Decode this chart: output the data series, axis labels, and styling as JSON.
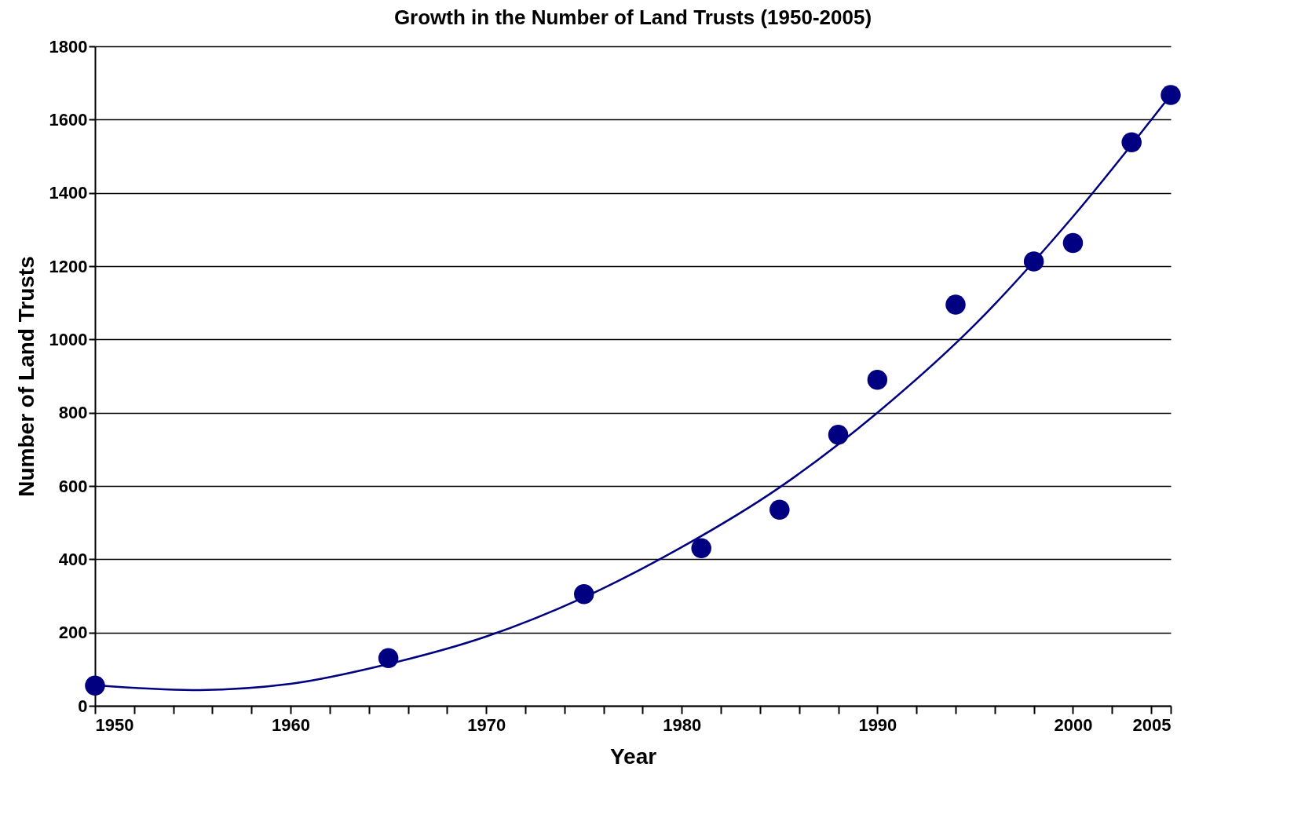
{
  "chart_data": {
    "type": "scatter",
    "title": "Growth in the Number of Land Trusts (1950-2005)",
    "xlabel": "Year",
    "ylabel": "Number of Land Trusts",
    "xlim": [
      1950,
      2005
    ],
    "ylim": [
      0,
      1800
    ],
    "xticks": [
      1950,
      {
        "value": 1952,
        "label": null
      },
      {
        "value": 1954,
        "label": null
      },
      {
        "value": 1956,
        "label": null
      },
      {
        "value": 1958,
        "label": null
      },
      1960,
      {
        "value": 1962,
        "label": null
      },
      {
        "value": 1964,
        "label": null
      },
      {
        "value": 1966,
        "label": null
      },
      {
        "value": 1968,
        "label": null
      },
      1970,
      {
        "value": 1972,
        "label": null
      },
      {
        "value": 1974,
        "label": null
      },
      {
        "value": 1976,
        "label": null
      },
      {
        "value": 1978,
        "label": null
      },
      1980,
      {
        "value": 1982,
        "label": null
      },
      {
        "value": 1984,
        "label": null
      },
      {
        "value": 1986,
        "label": null
      },
      {
        "value": 1988,
        "label": null
      },
      1990,
      {
        "value": 1992,
        "label": null
      },
      {
        "value": 1994,
        "label": null
      },
      {
        "value": 1996,
        "label": null
      },
      {
        "value": 1998,
        "label": null
      },
      2000,
      {
        "value": 2002,
        "label": null
      },
      {
        "value": 2004,
        "label": null
      },
      2005
    ],
    "yticks": [
      0,
      200,
      400,
      600,
      800,
      1000,
      1200,
      1400,
      1600,
      1800
    ],
    "grid": "y",
    "series": [
      {
        "color": "#000080",
        "marker": "circle",
        "x": [
          1950,
          1965,
          1975,
          1981,
          1985,
          1988,
          1990,
          1994,
          1998,
          2000,
          2003,
          2005
        ],
        "values": [
          55,
          130,
          305,
          430,
          535,
          740,
          890,
          1095,
          1213,
          1263,
          1538,
          1667
        ]
      },
      {
        "type": "line",
        "color": "#000080",
        "marker": "none",
        "line_style": "solid",
        "x": [
          1950,
          1955,
          1960,
          1965,
          1970,
          1975,
          1980,
          1985,
          1990,
          1995,
          2000,
          2005
        ],
        "values": [
          56,
          43,
          60,
          114,
          189,
          296,
          433,
          596,
          800,
          1041,
          1335,
          1667
        ]
      }
    ]
  }
}
